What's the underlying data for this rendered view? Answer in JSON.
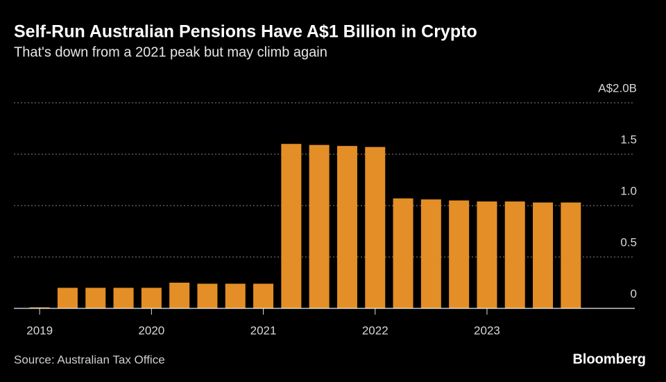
{
  "chart_data": {
    "type": "bar",
    "title": "Self-Run Australian Pensions Have A$1 Billion in Crypto",
    "subtitle": "That's down from a 2021 peak but may climb again",
    "source": "Source: Australian Tax Office",
    "brand": "Bloomberg",
    "categories": [
      "2019",
      null,
      null,
      null,
      "2020",
      null,
      null,
      null,
      "2021",
      null,
      null,
      null,
      "2022",
      null,
      null,
      null,
      "2023",
      null,
      null,
      null
    ],
    "values": [
      0.01,
      0.2,
      0.2,
      0.2,
      0.2,
      0.25,
      0.24,
      0.24,
      0.24,
      1.6,
      1.59,
      1.58,
      1.57,
      1.07,
      1.06,
      1.05,
      1.04,
      1.04,
      1.03,
      1.03
    ],
    "color": "#e38e26",
    "ylim": [
      0,
      2
    ],
    "yticks": [
      0,
      0.5,
      {
        "value": 1,
        "label": "1.0"
      },
      1.5,
      {
        "value": 2,
        "label": "A$2.0B"
      }
    ],
    "grid": true
  }
}
